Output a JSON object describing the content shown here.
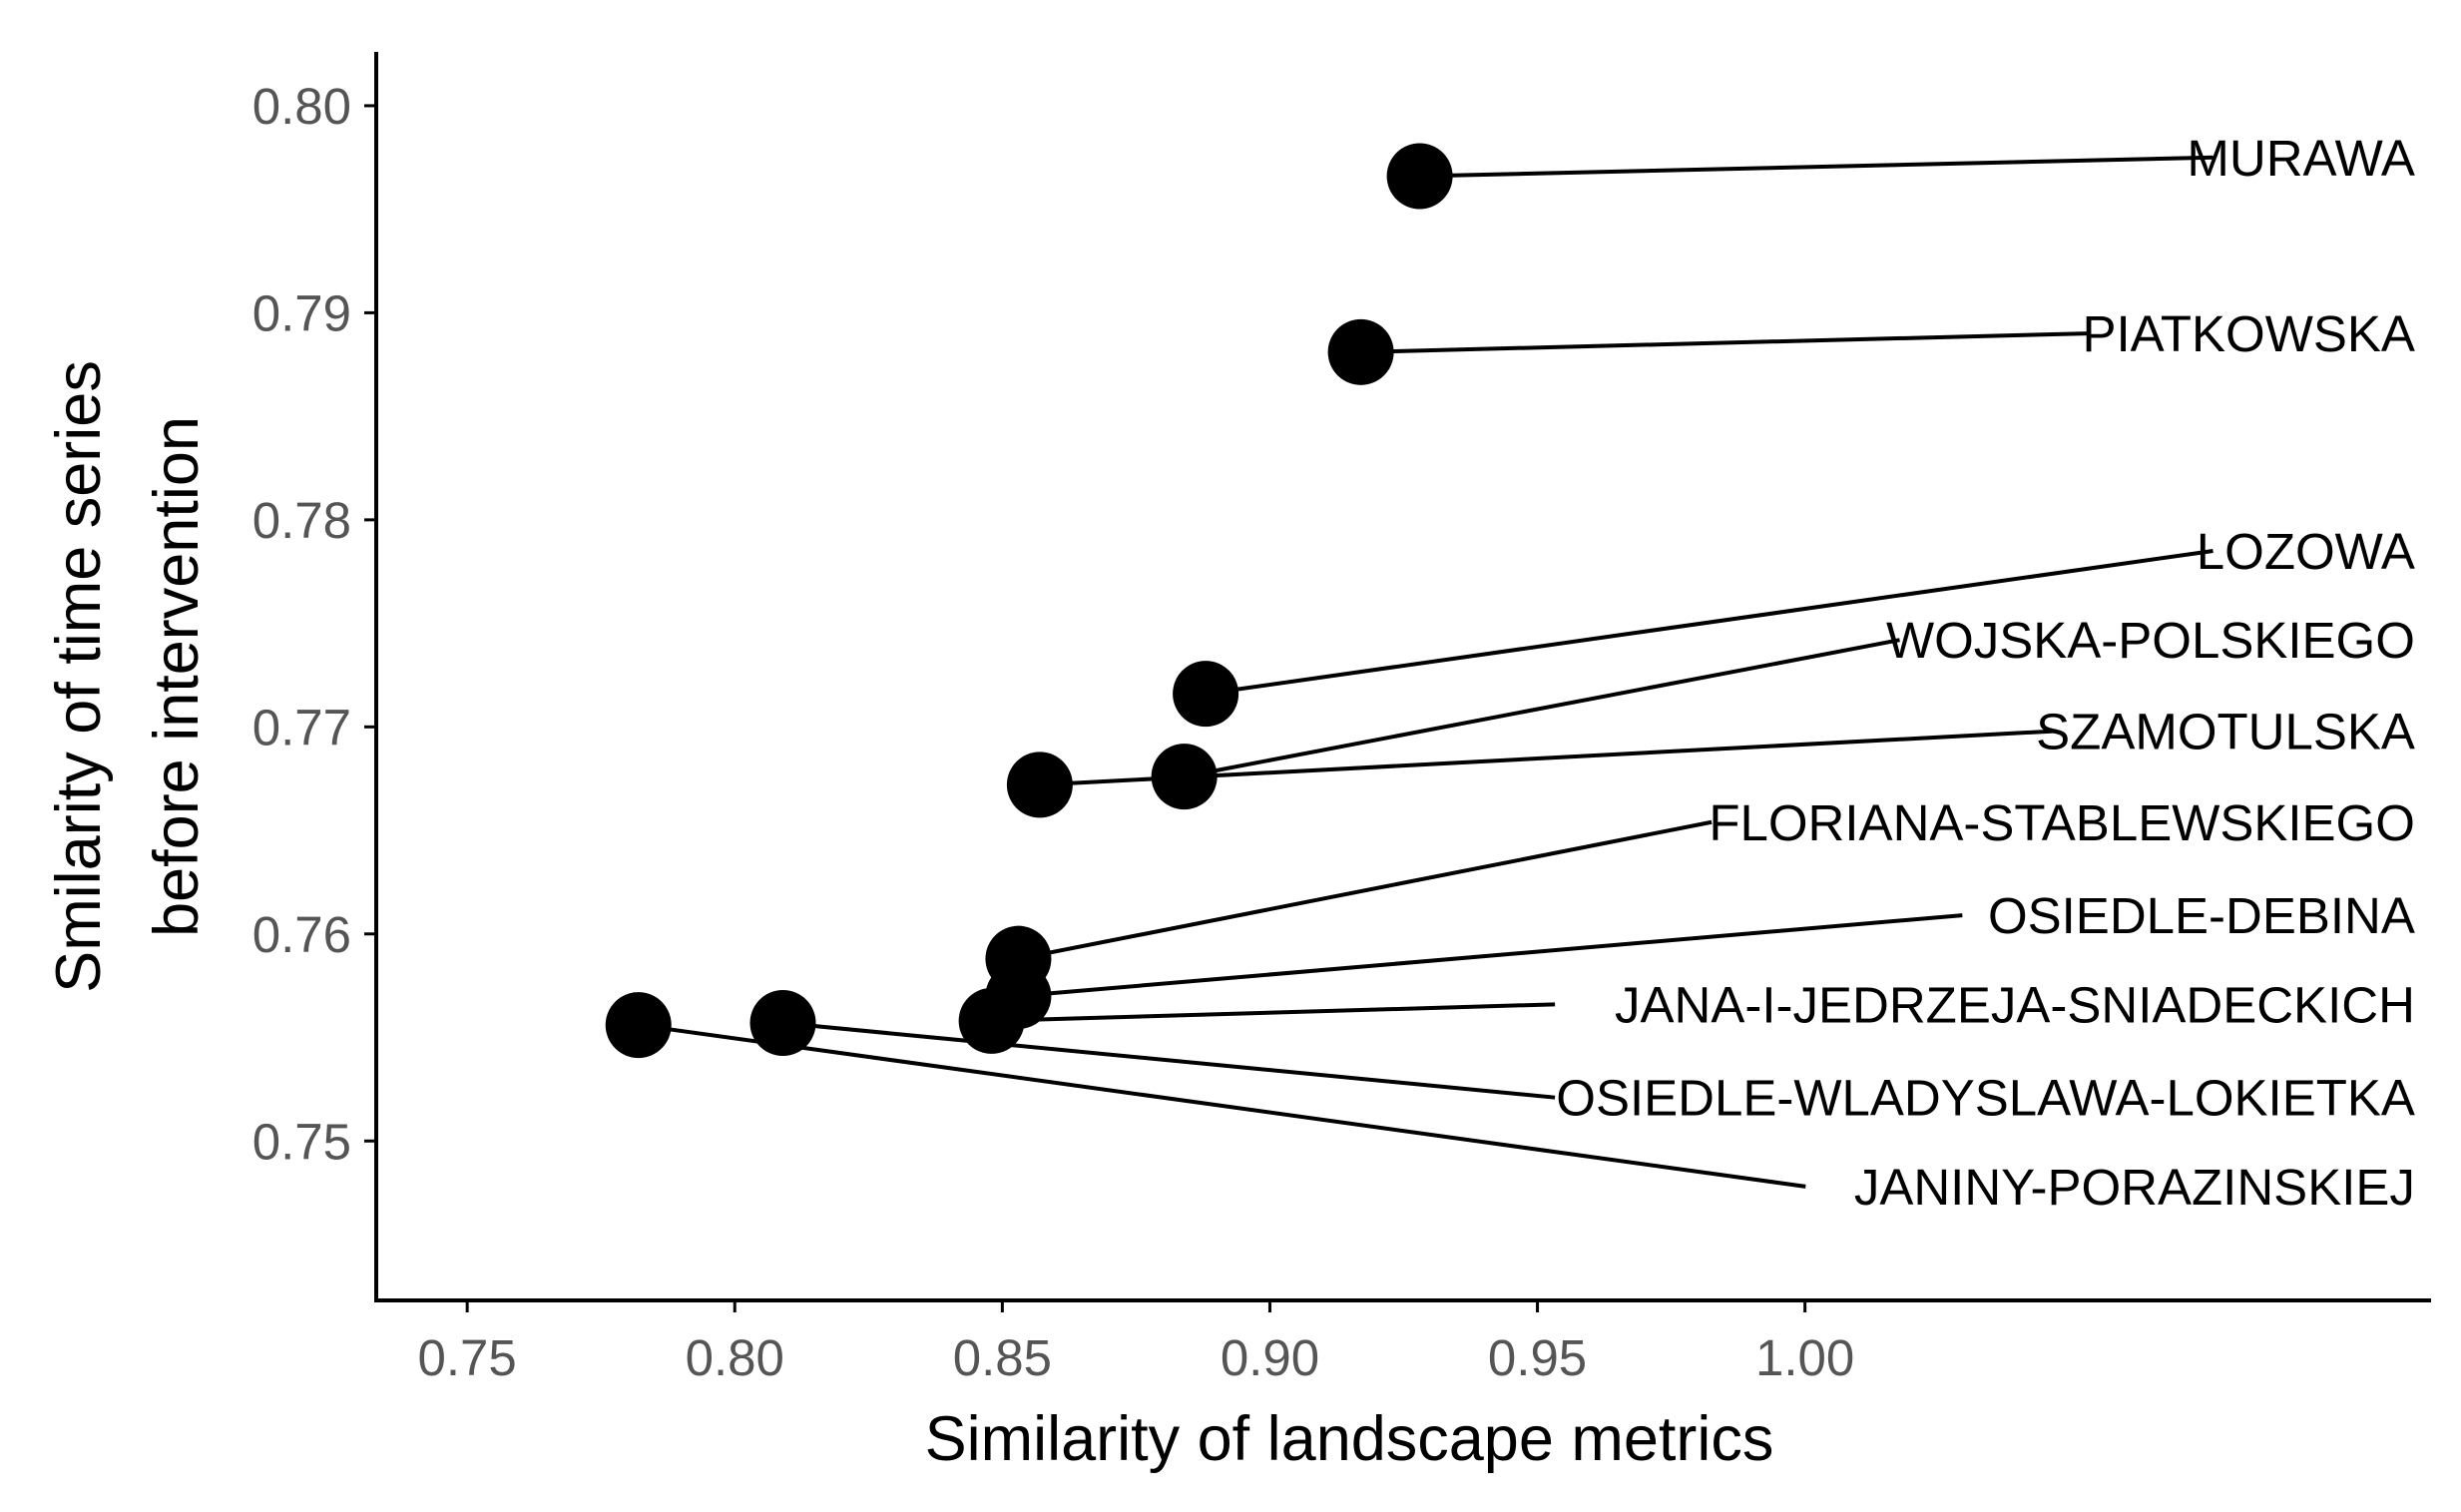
{
  "chart_data": {
    "type": "scatter",
    "title": "",
    "xlabel": "Similarity of landscape metrics",
    "ylabel_lines": [
      "Smilarity of time series",
      "before intervention"
    ],
    "xlim": [
      0.733,
      1.117
    ],
    "ylim": [
      0.7423,
      0.8026
    ],
    "xticks": [
      0.75,
      0.8,
      0.85,
      0.9,
      0.95,
      1.0
    ],
    "xtick_labels": [
      "0.75",
      "0.80",
      "0.85",
      "0.90",
      "0.95",
      "1.00"
    ],
    "yticks": [
      0.75,
      0.76,
      0.77,
      0.78,
      0.79,
      0.8
    ],
    "ytick_labels": [
      "0.75",
      "0.76",
      "0.77",
      "0.78",
      "0.79",
      "0.80"
    ],
    "grid": false,
    "point_color": "#000000",
    "points": [
      {
        "name": "MURAWA",
        "x": 0.928,
        "y": 0.7966,
        "label_x": 1.114,
        "label_y": 0.7975
      },
      {
        "name": "PIATKOWSKA",
        "x": 0.917,
        "y": 0.7881,
        "label_x": 1.114,
        "label_y": 0.789
      },
      {
        "name": "LOZOWA",
        "x": 0.888,
        "y": 0.7716,
        "label_x": 1.114,
        "label_y": 0.7785
      },
      {
        "name": "WOJSKA-POLSKIEGO",
        "x": 0.884,
        "y": 0.7676,
        "label_x": 1.114,
        "label_y": 0.7742
      },
      {
        "name": "SZAMOTULSKA",
        "x": 0.857,
        "y": 0.7672,
        "label_x": 1.114,
        "label_y": 0.7698
      },
      {
        "name": "FLORIANA-STABLEWSKIEGO",
        "x": 0.853,
        "y": 0.7588,
        "label_x": 1.114,
        "label_y": 0.7654
      },
      {
        "name": "OSIEDLE-DEBINA",
        "x": 0.853,
        "y": 0.757,
        "label_x": 1.114,
        "label_y": 0.7609
      },
      {
        "name": "JANA-I-JEDRZEJA-SNIADECKICH",
        "x": 0.848,
        "y": 0.7558,
        "label_x": 1.114,
        "label_y": 0.7566
      },
      {
        "name": "OSIEDLE-WLADYSLAWA-LOKIETKA",
        "x": 0.809,
        "y": 0.7557,
        "label_x": 1.114,
        "label_y": 0.7521
      },
      {
        "name": "JANINY-PORAZINSKIEJ",
        "x": 0.782,
        "y": 0.7556,
        "label_x": 1.114,
        "label_y": 0.7478
      }
    ]
  }
}
